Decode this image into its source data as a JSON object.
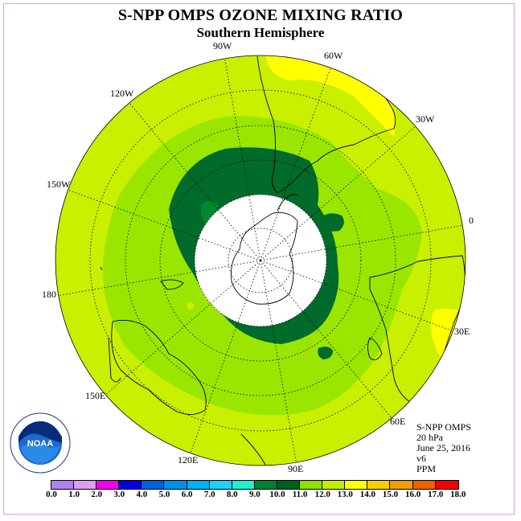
{
  "title": "S-NPP OMPS OZONE MIXING RATIO",
  "subtitle": "Southern Hemisphere",
  "longitude_labels": [
    "90W",
    "60W",
    "120W",
    "30W",
    "150W",
    "0",
    "180",
    "30E",
    "150E",
    "60E",
    "120E",
    "90E"
  ],
  "info": {
    "instrument": "S-NPP OMPS",
    "level": "20 hPa",
    "date": "June 25, 2016",
    "version": "v6",
    "units": "PPM"
  },
  "logo_text": "NOAA",
  "colorbar": {
    "ticks": [
      "0.0",
      "1.0",
      "2.0",
      "3.0",
      "4.0",
      "5.0",
      "6.0",
      "7.0",
      "8.0",
      "9.0",
      "10.0",
      "11.0",
      "12.0",
      "13.0",
      "14.0",
      "15.0",
      "16.0",
      "17.0",
      "18.0"
    ],
    "colors": [
      "#b080f0",
      "#d8a0f0",
      "#f000f0",
      "#0000e0",
      "#0060e0",
      "#0090e8",
      "#00b0f0",
      "#20d0f8",
      "#20f0d0",
      "#008030",
      "#006020",
      "#90e000",
      "#c0f000",
      "#ffff00",
      "#f8d000",
      "#f0a000",
      "#f06000",
      "#f00000",
      "#806040"
    ]
  },
  "map_colors": {
    "background": "#c8f000",
    "band_11": "#9ae600",
    "band_10": "#006b2a",
    "band_9": "#00882e",
    "band_13": "#ffff00",
    "no_data": "#ffffff"
  }
}
